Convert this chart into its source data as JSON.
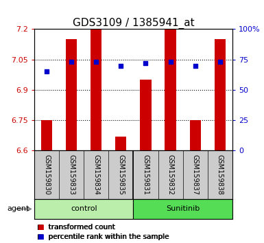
{
  "title": "GDS3109 / 1385941_at",
  "samples": [
    "GSM159830",
    "GSM159833",
    "GSM159834",
    "GSM159835",
    "GSM159831",
    "GSM159832",
    "GSM159837",
    "GSM159838"
  ],
  "transformed_counts": [
    6.75,
    7.15,
    7.2,
    6.67,
    6.95,
    7.2,
    6.75,
    7.15
  ],
  "percentile_ranks": [
    65,
    73,
    73,
    70,
    72,
    73,
    70,
    73
  ],
  "baseline": 6.6,
  "ylim_left": [
    6.6,
    7.2
  ],
  "ylim_right": [
    0,
    100
  ],
  "yticks_left": [
    6.6,
    6.75,
    6.9,
    7.05,
    7.2
  ],
  "yticks_right": [
    0,
    25,
    50,
    75,
    100
  ],
  "ytick_labels_right": [
    "0",
    "25",
    "50",
    "75",
    "100%"
  ],
  "groups": [
    {
      "name": "control",
      "indices": [
        0,
        1,
        2,
        3
      ],
      "color": "#bbeeaa"
    },
    {
      "name": "Sunitinib",
      "indices": [
        4,
        5,
        6,
        7
      ],
      "color": "#55dd55"
    }
  ],
  "bar_color": "#cc0000",
  "dot_color": "#0000cc",
  "bar_width": 0.45,
  "background_color": "#ffffff",
  "plot_bg_color": "#ffffff",
  "sample_bg_color": "#cccccc",
  "title_fontsize": 11,
  "tick_fontsize": 8,
  "label_fontsize": 8,
  "legend_fontsize": 7.5,
  "agent_label": "agent"
}
